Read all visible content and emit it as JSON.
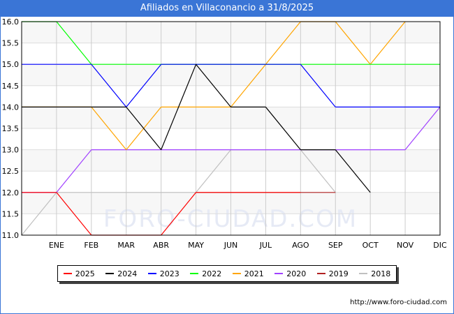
{
  "chart_data": {
    "type": "line",
    "title": "Afiliados en Villaconancio a 31/8/2025",
    "categories": [
      "",
      "ENE",
      "FEB",
      "MAR",
      "ABR",
      "MAY",
      "JUN",
      "JUL",
      "AGO",
      "SEP",
      "OCT",
      "NOV",
      "DIC"
    ],
    "ylim": [
      11,
      16
    ],
    "yticks": [
      "11.0",
      "11.5",
      "12.0",
      "12.5",
      "13.0",
      "13.5",
      "14.0",
      "14.5",
      "15.0",
      "15.5",
      "16.0"
    ],
    "grid": true,
    "legend_position": "bottom",
    "series": [
      {
        "name": "2018",
        "color": "#c0c0c0",
        "values": [
          11,
          12,
          12,
          12,
          12,
          12,
          13,
          13,
          13,
          12,
          null,
          null,
          null
        ]
      },
      {
        "name": "2019",
        "color": "#b22222",
        "values": [
          12,
          12,
          null,
          null,
          null,
          12,
          12,
          12,
          12,
          12,
          null,
          null,
          null
        ]
      },
      {
        "name": "2020",
        "color": "#a040ff",
        "values": [
          12,
          12,
          13,
          13,
          13,
          13,
          13,
          13,
          13,
          13,
          13,
          13,
          14
        ]
      },
      {
        "name": "2021",
        "color": "#ffa500",
        "values": [
          14,
          14,
          14,
          13,
          14,
          14,
          14,
          15,
          16,
          16,
          15,
          16,
          null
        ]
      },
      {
        "name": "2022",
        "color": "#00ff00",
        "values": [
          16,
          16,
          15,
          15,
          15,
          15,
          15,
          15,
          15,
          15,
          15,
          15,
          15
        ]
      },
      {
        "name": "2023",
        "color": "#0000ff",
        "values": [
          15,
          15,
          15,
          14,
          15,
          15,
          15,
          15,
          15,
          14,
          14,
          14,
          14
        ]
      },
      {
        "name": "2024",
        "color": "#000000",
        "values": [
          14,
          14,
          14,
          14,
          13,
          15,
          14,
          14,
          13,
          13,
          12,
          null,
          null
        ]
      },
      {
        "name": "2025",
        "color": "#ff0000",
        "values": [
          12,
          12,
          11,
          11,
          11,
          12,
          12,
          12,
          12,
          null,
          null,
          null,
          null
        ]
      }
    ],
    "legend_order": [
      "2025",
      "2024",
      "2023",
      "2022",
      "2021",
      "2020",
      "2019",
      "2018"
    ]
  },
  "watermark": "FORO-CIUDAD.COM",
  "footer_url": "http://www.foro-ciudad.com"
}
